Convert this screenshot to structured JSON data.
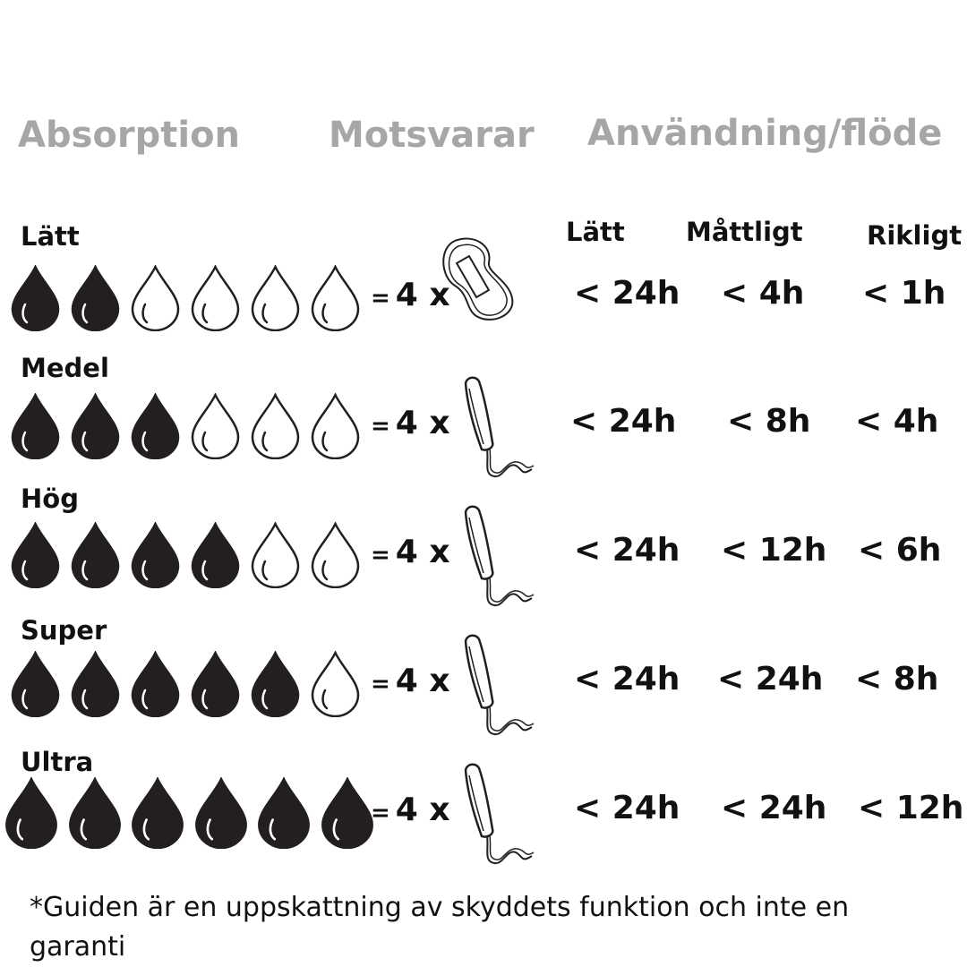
{
  "headers": {
    "absorption": "Absorption",
    "equivalent": "Motsvarar",
    "usage": "Användning/flöde"
  },
  "flow_columns": [
    "Lätt",
    "Måttligt",
    "Rikligt"
  ],
  "rows": [
    {
      "level": "Lätt",
      "filled_drops": 2,
      "total_drops": 6,
      "equivalent": "4 x",
      "product_icon": "pad-icon",
      "times": [
        "< 24h",
        "< 4h",
        "< 1h"
      ]
    },
    {
      "level": "Medel",
      "filled_drops": 3,
      "total_drops": 6,
      "equivalent": "4 x",
      "product_icon": "tampon-icon",
      "times": [
        "< 24h",
        "< 8h",
        "< 4h"
      ]
    },
    {
      "level": "Hög",
      "filled_drops": 4,
      "total_drops": 6,
      "equivalent": "4 x",
      "product_icon": "tampon-icon",
      "times": [
        "< 24h",
        "< 12h",
        "< 6h"
      ]
    },
    {
      "level": "Super",
      "filled_drops": 5,
      "total_drops": 6,
      "equivalent": "4 x",
      "product_icon": "tampon-icon",
      "times": [
        "< 24h",
        "< 24h",
        "< 8h"
      ]
    },
    {
      "level": "Ultra",
      "filled_drops": 6,
      "total_drops": 6,
      "equivalent": "4 x",
      "product_icon": "tampon-icon",
      "times": [
        "< 24h",
        "< 24h",
        "< 12h"
      ]
    }
  ],
  "equals_sign": "=",
  "footnote": "*Guiden är en uppskattning av skyddets funktion och inte en garanti",
  "colors": {
    "header": "#a6a6a6",
    "drop_fill": "#231f20",
    "text": "#111111"
  }
}
